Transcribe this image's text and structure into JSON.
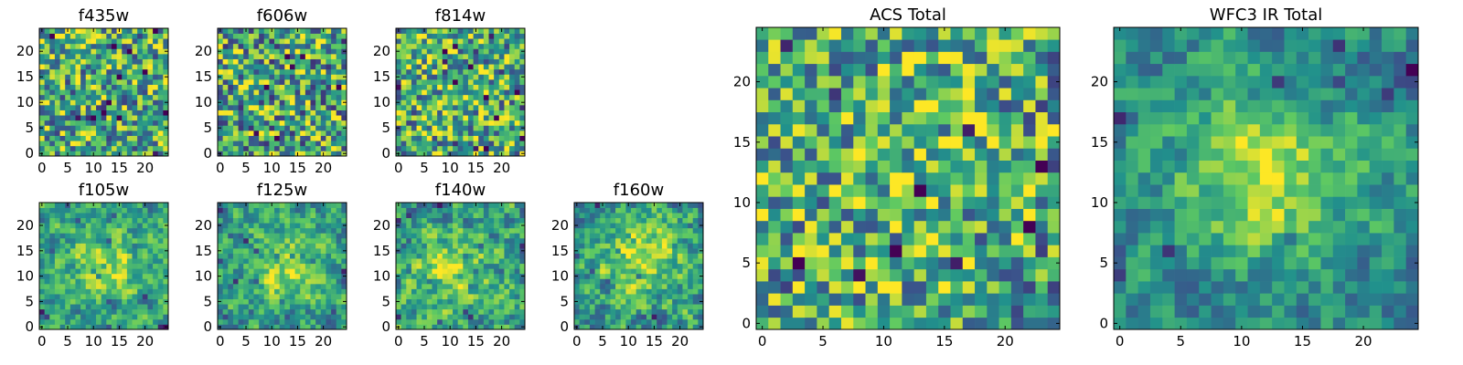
{
  "figure": {
    "description_type": "grid of image cutout panels"
  },
  "colormap": {
    "name": "viridis",
    "stops": [
      "#440154",
      "#3b528b",
      "#21918c",
      "#5ec962",
      "#fde725"
    ]
  },
  "chart_data": [
    {
      "type": "heatmap",
      "title": "f435w",
      "grid_size": 25,
      "xlim": [
        -0.5,
        24.5
      ],
      "ylim": [
        -0.5,
        24.5
      ],
      "xticks": [
        0,
        5,
        10,
        15,
        20
      ],
      "yticks": [
        0,
        5,
        10,
        15,
        20
      ],
      "xlabel": "",
      "ylabel": "",
      "pattern": {
        "seed": 11,
        "base": 0.62,
        "noise": 0.42,
        "peak": 0.0,
        "cx": 12,
        "cy": 12,
        "sigma": 6,
        "smooth": 0
      }
    },
    {
      "type": "heatmap",
      "title": "f606w",
      "grid_size": 25,
      "xlim": [
        -0.5,
        24.5
      ],
      "ylim": [
        -0.5,
        24.5
      ],
      "xticks": [
        0,
        5,
        10,
        15,
        20
      ],
      "yticks": [
        0,
        5,
        10,
        15,
        20
      ],
      "xlabel": "",
      "ylabel": "",
      "pattern": {
        "seed": 23,
        "base": 0.6,
        "noise": 0.45,
        "peak": 0.0,
        "cx": 12,
        "cy": 12,
        "sigma": 6,
        "smooth": 0
      }
    },
    {
      "type": "heatmap",
      "title": "f814w",
      "grid_size": 25,
      "xlim": [
        -0.5,
        24.5
      ],
      "ylim": [
        -0.5,
        24.5
      ],
      "xticks": [
        0,
        5,
        10,
        15,
        20
      ],
      "yticks": [
        0,
        5,
        10,
        15,
        20
      ],
      "xlabel": "",
      "ylabel": "",
      "pattern": {
        "seed": 37,
        "base": 0.62,
        "noise": 0.42,
        "peak": 0.05,
        "cx": 12,
        "cy": 12,
        "sigma": 6,
        "smooth": 0
      }
    },
    {
      "type": "heatmap",
      "title": "f105w",
      "grid_size": 25,
      "xlim": [
        -0.5,
        24.5
      ],
      "ylim": [
        -0.5,
        24.5
      ],
      "xticks": [
        0,
        5,
        10,
        15,
        20
      ],
      "yticks": [
        0,
        5,
        10,
        15,
        20
      ],
      "xlabel": "",
      "ylabel": "",
      "pattern": {
        "seed": 41,
        "base": 0.55,
        "noise": 0.4,
        "peak": 0.3,
        "cx": 12,
        "cy": 12,
        "sigma": 5,
        "smooth": 1
      }
    },
    {
      "type": "heatmap",
      "title": "f125w",
      "grid_size": 25,
      "xlim": [
        -0.5,
        24.5
      ],
      "ylim": [
        -0.5,
        24.5
      ],
      "xticks": [
        0,
        5,
        10,
        15,
        20
      ],
      "yticks": [
        0,
        5,
        10,
        15,
        20
      ],
      "xlabel": "",
      "ylabel": "",
      "pattern": {
        "seed": 53,
        "base": 0.55,
        "noise": 0.4,
        "peak": 0.3,
        "cx": 13,
        "cy": 12,
        "sigma": 5,
        "smooth": 1
      }
    },
    {
      "type": "heatmap",
      "title": "f140w",
      "grid_size": 25,
      "xlim": [
        -0.5,
        24.5
      ],
      "ylim": [
        -0.5,
        24.5
      ],
      "xticks": [
        0,
        5,
        10,
        15,
        20
      ],
      "yticks": [
        0,
        5,
        10,
        15,
        20
      ],
      "xlabel": "",
      "ylabel": "",
      "pattern": {
        "seed": 67,
        "base": 0.55,
        "noise": 0.45,
        "peak": 0.3,
        "cx": 11,
        "cy": 11,
        "sigma": 5,
        "smooth": 1
      }
    },
    {
      "type": "heatmap",
      "title": "f160w",
      "grid_size": 25,
      "xlim": [
        -0.5,
        24.5
      ],
      "ylim": [
        -0.5,
        24.5
      ],
      "xticks": [
        0,
        5,
        10,
        15,
        20
      ],
      "yticks": [
        0,
        5,
        10,
        15,
        20
      ],
      "xlabel": "",
      "ylabel": "",
      "pattern": {
        "seed": 79,
        "base": 0.55,
        "noise": 0.45,
        "peak": 0.35,
        "cx": 13,
        "cy": 14,
        "sigma": 5,
        "smooth": 1
      }
    },
    {
      "type": "heatmap",
      "title": "ACS Total",
      "grid_size": 25,
      "xlim": [
        -0.5,
        24.5
      ],
      "ylim": [
        -0.5,
        24.5
      ],
      "xticks": [
        0,
        5,
        10,
        15,
        20
      ],
      "yticks": [
        0,
        5,
        10,
        15,
        20
      ],
      "xlabel": "",
      "ylabel": "",
      "pattern": {
        "seed": 97,
        "base": 0.6,
        "noise": 0.42,
        "peak": 0.15,
        "cx": 12,
        "cy": 13,
        "sigma": 5,
        "smooth": 0
      }
    },
    {
      "type": "heatmap",
      "title": "WFC3 IR Total",
      "grid_size": 25,
      "xlim": [
        -0.5,
        24.5
      ],
      "ylim": [
        -0.5,
        24.5
      ],
      "xticks": [
        0,
        5,
        10,
        15,
        20
      ],
      "yticks": [
        0,
        5,
        10,
        15,
        20
      ],
      "xlabel": "",
      "ylabel": "",
      "pattern": {
        "seed": 113,
        "base": 0.45,
        "noise": 0.35,
        "peak": 0.5,
        "cx": 12,
        "cy": 12,
        "sigma": 5,
        "smooth": 1
      }
    }
  ]
}
